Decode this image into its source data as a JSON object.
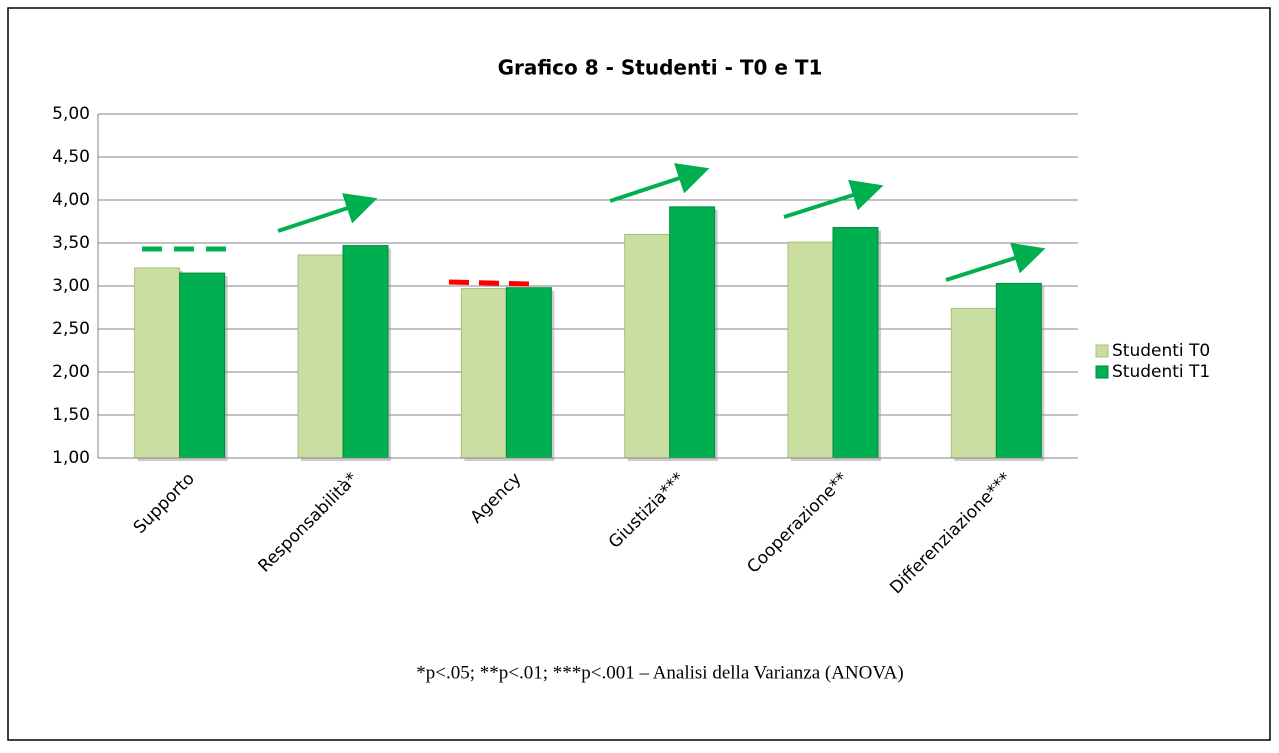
{
  "chart_data": {
    "type": "bar",
    "title": "Grafico 8 - Studenti - T0 e T1",
    "categories": [
      "Supporto",
      "Responsabilità*",
      "Agency",
      "Giustizia***",
      "Cooperazione**",
      "Differenziazione***"
    ],
    "series": [
      {
        "name": "Studenti T0",
        "color": "#c9dea0",
        "values": [
          3.21,
          3.36,
          2.97,
          3.6,
          3.51,
          2.74
        ]
      },
      {
        "name": "Studenti T1",
        "color": "#00b050",
        "values": [
          3.15,
          3.47,
          2.98,
          3.92,
          3.68,
          3.03
        ]
      }
    ],
    "ylim": [
      1,
      5
    ],
    "yticks": [
      {
        "value": 1,
        "label": "1,00"
      },
      {
        "value": 1.5,
        "label": "1,50"
      },
      {
        "value": 2,
        "label": "2,00"
      },
      {
        "value": 2.5,
        "label": "2,50"
      },
      {
        "value": 3,
        "label": "3,00"
      },
      {
        "value": 3.5,
        "label": "3,50"
      },
      {
        "value": 4,
        "label": "4,00"
      },
      {
        "value": 4.5,
        "label": "4,50"
      },
      {
        "value": 5,
        "label": "5,00"
      }
    ],
    "grid": true,
    "legend": "right",
    "note": "*p<.05; **p<.01; ***p<.001 – Analisi della Varianza (ANOVA)"
  }
}
